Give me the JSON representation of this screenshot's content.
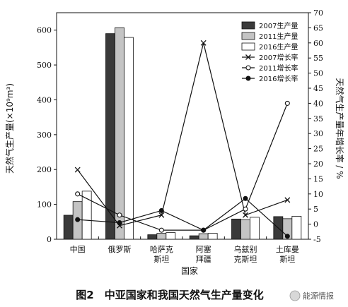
{
  "chart_data": {
    "type": "bar+line",
    "categories": [
      [
        "中国"
      ],
      [
        "俄罗斯"
      ],
      [
        "哈萨克",
        "斯坦"
      ],
      [
        "阿塞",
        "拜疆"
      ],
      [
        "乌兹别",
        "克斯坦"
      ],
      [
        "土库曼",
        "斯坦"
      ]
    ],
    "xlabel": "国家",
    "ylabel_left": "天然气生产量(×10⁹m³)",
    "ylabel_right": "天然气生产量年增长率 / %",
    "ylim_left": [
      0,
      650
    ],
    "yticks_left": [
      0,
      100,
      200,
      300,
      400,
      500,
      600
    ],
    "ylim_right": [
      -5,
      70
    ],
    "yticks_right": [
      -5,
      0,
      5,
      10,
      15,
      20,
      25,
      30,
      35,
      40,
      45,
      50,
      55,
      60,
      65,
      70
    ],
    "bars": [
      {
        "name": "2007生产量",
        "values": [
          69,
          590,
          13,
          10,
          58,
          65
        ],
        "color": "#3a3a3a"
      },
      {
        "name": "2011生产量",
        "values": [
          108,
          607,
          17,
          16,
          56,
          59
        ],
        "color": "#c4c4c4"
      },
      {
        "name": "2016生产量",
        "values": [
          138,
          579,
          19,
          17,
          63,
          66
        ],
        "color": "#ffffff"
      }
    ],
    "lines": [
      {
        "name": "2007增长率",
        "values": [
          18,
          -0.5,
          3,
          60,
          3,
          8
        ],
        "marker": "x"
      },
      {
        "name": "2011增长率",
        "values": [
          10,
          3,
          -2,
          -2,
          5,
          40
        ],
        "marker": "open-circle"
      },
      {
        "name": "2016增长率",
        "values": [
          1.5,
          0.5,
          4.5,
          -2,
          8.5,
          -4
        ],
        "marker": "filled-circle"
      }
    ],
    "legend_position": "top-right",
    "grid": false
  },
  "caption": "图2　中亚国家和我国天然气生产量变化",
  "watermark": "能源情报"
}
